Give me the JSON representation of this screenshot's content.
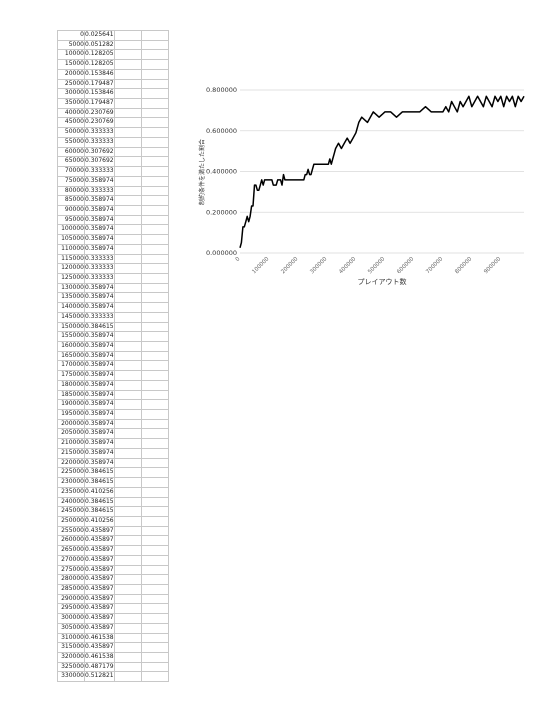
{
  "sheet": {
    "rows": [
      [
        "0",
        "0.025641"
      ],
      [
        "5000",
        "0.0512821"
      ],
      [
        "10000",
        "0.128205"
      ],
      [
        "15000",
        "0.128205"
      ],
      [
        "20000",
        "0.153846"
      ],
      [
        "25000",
        "0.179487"
      ],
      [
        "30000",
        "0.153846"
      ],
      [
        "35000",
        "0.179487"
      ],
      [
        "40000",
        "0.230769"
      ],
      [
        "45000",
        "0.230769"
      ],
      [
        "50000",
        "0.333333"
      ],
      [
        "55000",
        "0.333333"
      ],
      [
        "60000",
        "0.307692"
      ],
      [
        "65000",
        "0.307692"
      ],
      [
        "70000",
        "0.333333"
      ],
      [
        "75000",
        "0.358974"
      ],
      [
        "80000",
        "0.333333"
      ],
      [
        "85000",
        "0.358974"
      ],
      [
        "90000",
        "0.358974"
      ],
      [
        "95000",
        "0.358974"
      ],
      [
        "100000",
        "0.358974"
      ],
      [
        "105000",
        "0.358974"
      ],
      [
        "110000",
        "0.358974"
      ],
      [
        "115000",
        "0.333333"
      ],
      [
        "120000",
        "0.333333"
      ],
      [
        "125000",
        "0.333333"
      ],
      [
        "130000",
        "0.358974"
      ],
      [
        "135000",
        "0.358974"
      ],
      [
        "140000",
        "0.358974"
      ],
      [
        "145000",
        "0.333333"
      ],
      [
        "150000",
        "0.384615"
      ],
      [
        "155000",
        "0.358974"
      ],
      [
        "160000",
        "0.358974"
      ],
      [
        "165000",
        "0.358974"
      ],
      [
        "170000",
        "0.358974"
      ],
      [
        "175000",
        "0.358974"
      ],
      [
        "180000",
        "0.358974"
      ],
      [
        "185000",
        "0.358974"
      ],
      [
        "190000",
        "0.358974"
      ],
      [
        "195000",
        "0.358974"
      ],
      [
        "200000",
        "0.358974"
      ],
      [
        "205000",
        "0.358974"
      ],
      [
        "210000",
        "0.358974"
      ],
      [
        "215000",
        "0.358974"
      ],
      [
        "220000",
        "0.358974"
      ],
      [
        "225000",
        "0.384615"
      ],
      [
        "230000",
        "0.384615"
      ],
      [
        "235000",
        "0.410256"
      ],
      [
        "240000",
        "0.384615"
      ],
      [
        "245000",
        "0.384615"
      ],
      [
        "250000",
        "0.410256"
      ],
      [
        "255000",
        "0.435897"
      ],
      [
        "260000",
        "0.435897"
      ],
      [
        "265000",
        "0.435897"
      ],
      [
        "270000",
        "0.435897"
      ],
      [
        "275000",
        "0.435897"
      ],
      [
        "280000",
        "0.435897"
      ],
      [
        "285000",
        "0.435897"
      ],
      [
        "290000",
        "0.435897"
      ],
      [
        "295000",
        "0.435897"
      ],
      [
        "300000",
        "0.435897"
      ],
      [
        "305000",
        "0.435897"
      ],
      [
        "310000",
        "0.461538"
      ],
      [
        "315000",
        "0.435897"
      ],
      [
        "320000",
        "0.461538"
      ],
      [
        "325000",
        "0.487179"
      ],
      [
        "330000",
        "0.512821"
      ]
    ]
  },
  "chart_data": {
    "type": "line",
    "title": "",
    "xlabel": "プレイアウト数",
    "ylabel": "制約条件を満たした割合",
    "ylim": [
      0,
      0.8
    ],
    "xlim": [
      0,
      980000
    ],
    "yticks": [
      "0.000000",
      "0.200000",
      "0.400000",
      "0.600000",
      "0.800000"
    ],
    "xticks": [
      "0",
      "100000",
      "200000",
      "300000",
      "400000",
      "500000",
      "600000",
      "700000",
      "800000",
      "900000"
    ],
    "grid": true,
    "line_color": "#000000",
    "series": [
      {
        "x": [
          0,
          5000,
          10000,
          15000,
          20000,
          25000,
          30000,
          35000,
          40000,
          45000,
          50000,
          55000,
          60000,
          65000,
          70000,
          75000,
          80000,
          85000,
          90000,
          95000,
          100000,
          105000,
          110000,
          115000,
          120000,
          125000,
          130000,
          135000,
          140000,
          145000,
          150000,
          155000,
          160000,
          165000,
          170000,
          175000,
          180000,
          185000,
          190000,
          195000,
          200000,
          205000,
          210000,
          215000,
          220000,
          225000,
          230000,
          235000,
          240000,
          245000,
          250000,
          255000,
          260000,
          265000,
          270000,
          275000,
          280000,
          285000,
          290000,
          295000,
          300000,
          305000,
          310000,
          315000,
          320000,
          325000,
          330000,
          340000,
          350000,
          360000,
          370000,
          380000,
          390000,
          400000,
          410000,
          420000,
          440000,
          460000,
          480000,
          500000,
          520000,
          540000,
          560000,
          580000,
          600000,
          620000,
          640000,
          660000,
          680000,
          700000,
          710000,
          720000,
          730000,
          740000,
          750000,
          760000,
          770000,
          780000,
          790000,
          800000,
          810000,
          820000,
          830000,
          840000,
          850000,
          860000,
          870000,
          880000,
          890000,
          900000,
          910000,
          920000,
          930000,
          940000,
          950000,
          960000,
          970000,
          980000
        ],
        "values": [
          0.025641,
          0.0512821,
          0.128205,
          0.128205,
          0.153846,
          0.179487,
          0.153846,
          0.179487,
          0.230769,
          0.230769,
          0.333333,
          0.333333,
          0.307692,
          0.307692,
          0.333333,
          0.358974,
          0.333333,
          0.358974,
          0.358974,
          0.358974,
          0.358974,
          0.358974,
          0.358974,
          0.333333,
          0.333333,
          0.333333,
          0.358974,
          0.358974,
          0.358974,
          0.333333,
          0.384615,
          0.358974,
          0.358974,
          0.358974,
          0.358974,
          0.358974,
          0.358974,
          0.358974,
          0.358974,
          0.358974,
          0.358974,
          0.358974,
          0.358974,
          0.358974,
          0.358974,
          0.384615,
          0.384615,
          0.410256,
          0.384615,
          0.384615,
          0.410256,
          0.435897,
          0.435897,
          0.435897,
          0.435897,
          0.435897,
          0.435897,
          0.435897,
          0.435897,
          0.435897,
          0.435897,
          0.435897,
          0.461538,
          0.435897,
          0.461538,
          0.487179,
          0.512821,
          0.538462,
          0.512821,
          0.538462,
          0.564103,
          0.538462,
          0.564103,
          0.589744,
          0.641026,
          0.666667,
          0.641026,
          0.692308,
          0.666667,
          0.692308,
          0.692308,
          0.666667,
          0.692308,
          0.692308,
          0.692308,
          0.692308,
          0.717949,
          0.692308,
          0.692308,
          0.692308,
          0.717949,
          0.692308,
          0.74359,
          0.717949,
          0.692308,
          0.74359,
          0.717949,
          0.74359,
          0.769231,
          0.717949,
          0.74359,
          0.769231,
          0.74359,
          0.717949,
          0.769231,
          0.74359,
          0.717949,
          0.769231,
          0.74359,
          0.769231,
          0.717949,
          0.769231,
          0.74359,
          0.769231,
          0.717949,
          0.769231,
          0.74359,
          0.769231
        ]
      }
    ]
  }
}
